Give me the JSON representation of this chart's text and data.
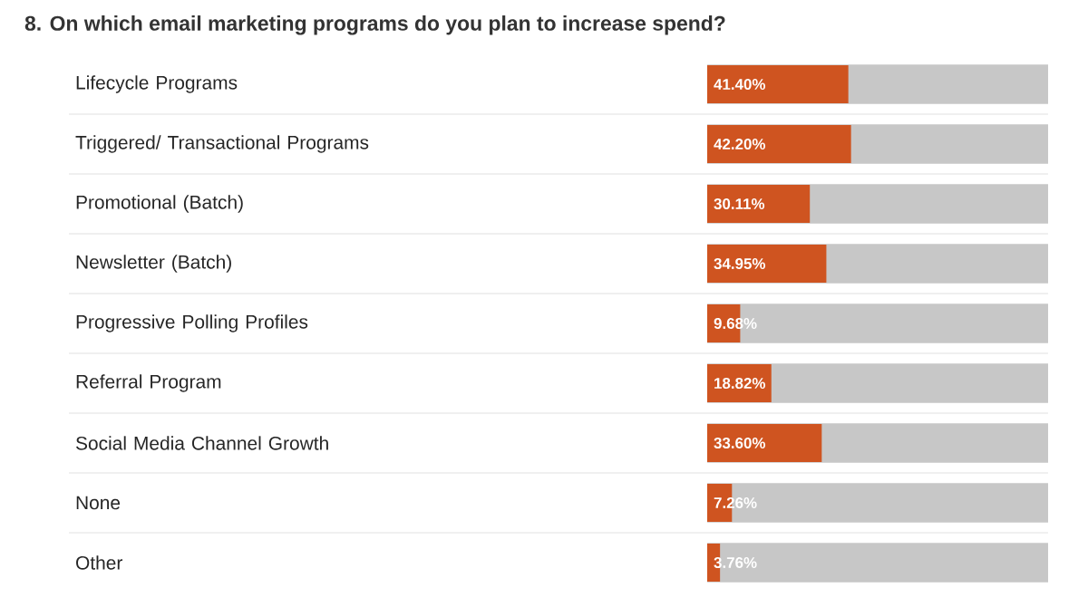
{
  "chart_data": {
    "type": "bar",
    "orientation": "horizontal",
    "title": "8.  On which email marketing programs do you plan to increase spend?",
    "categories": [
      "Lifecycle Programs",
      "Triggered/ Transactional Programs",
      "Promotional (Batch)",
      "Newsletter (Batch)",
      "Progressive Polling Profiles",
      "Referral Program",
      "Social Media Channel Growth",
      "None",
      "Other"
    ],
    "values": [
      41.4,
      42.2,
      30.11,
      34.95,
      9.68,
      18.82,
      33.6,
      7.26,
      3.76
    ],
    "value_labels": [
      "41.40%",
      "42.20%",
      "30.11%",
      "34.95%",
      "9.68%",
      "18.82%",
      "33.60%",
      "7.26%",
      "3.76%"
    ],
    "color": "#cf5420",
    "xlim": [
      0,
      100
    ],
    "tick_labels": "y"
  }
}
